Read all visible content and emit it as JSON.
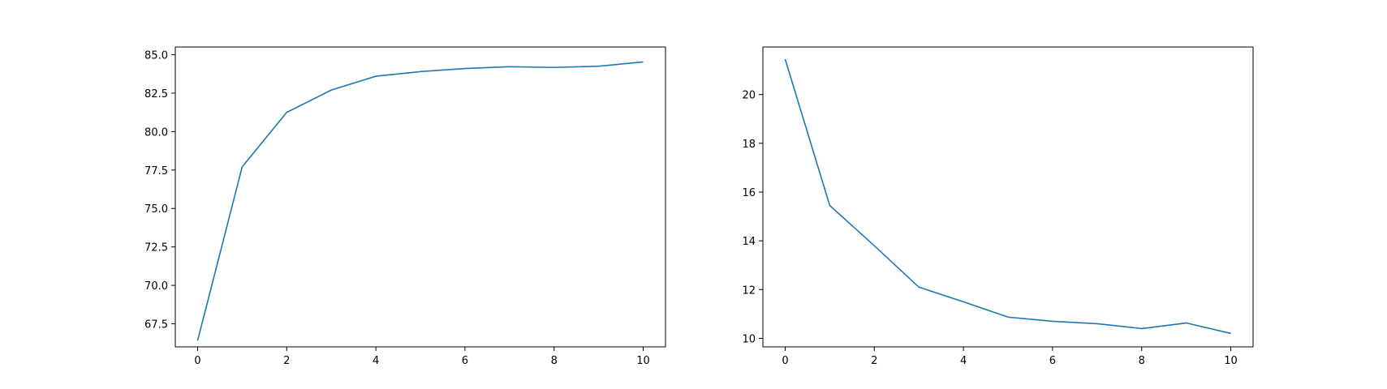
{
  "chart_data": [
    {
      "type": "line",
      "title": "",
      "xlabel": "",
      "ylabel": "",
      "xlim": [
        -0.5,
        10.5
      ],
      "ylim": [
        66.0,
        85.5
      ],
      "xticks": [
        0,
        2,
        4,
        6,
        8,
        10
      ],
      "yticks": [
        67.5,
        70.0,
        72.5,
        75.0,
        77.5,
        80.0,
        82.5,
        85.0
      ],
      "ytick_format": 1,
      "grid": false,
      "series": [
        {
          "color": "#1f77b4",
          "x": [
            0,
            1,
            2,
            3,
            4,
            5,
            6,
            7,
            8,
            9,
            10
          ],
          "y": [
            66.4,
            77.7,
            81.25,
            82.7,
            83.6,
            83.9,
            84.1,
            84.22,
            84.17,
            84.25,
            84.53
          ]
        }
      ]
    },
    {
      "type": "line",
      "title": "",
      "xlabel": "",
      "ylabel": "",
      "xlim": [
        -0.5,
        10.5
      ],
      "ylim": [
        9.65,
        21.95
      ],
      "xticks": [
        0,
        2,
        4,
        6,
        8,
        10
      ],
      "yticks": [
        10,
        12,
        14,
        16,
        18,
        20
      ],
      "ytick_format": 0,
      "grid": false,
      "series": [
        {
          "color": "#1f77b4",
          "x": [
            0,
            1,
            2,
            3,
            4,
            5,
            6,
            7,
            8,
            9,
            10
          ],
          "y": [
            21.45,
            15.45,
            13.8,
            12.1,
            11.5,
            10.87,
            10.7,
            10.6,
            10.4,
            10.63,
            10.2
          ]
        }
      ]
    }
  ]
}
